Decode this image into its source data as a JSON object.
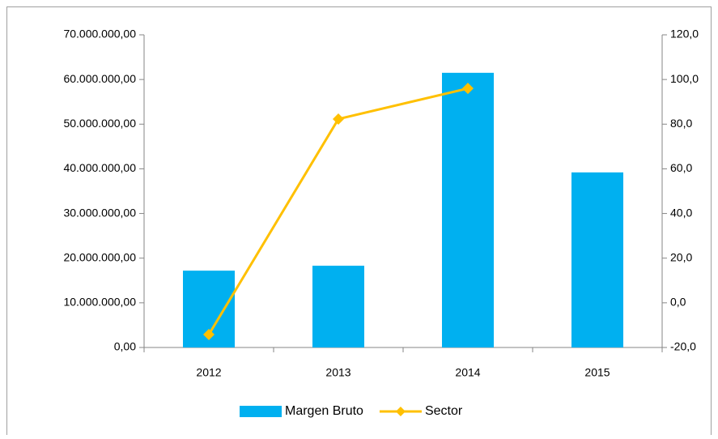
{
  "chart_data": {
    "type": "bar-line",
    "categories": [
      "2012",
      "2013",
      "2014",
      "2015"
    ],
    "series": [
      {
        "name": "Margen Bruto",
        "type": "bar",
        "color": "#00b0f0",
        "values": [
          17200000,
          18300000,
          61500000,
          39200000
        ]
      },
      {
        "name": "Sector",
        "type": "line",
        "axis": "y2",
        "color": "#ffc000",
        "values": [
          -14.2,
          82.3,
          96,
          null
        ]
      }
    ],
    "ylim": [
      0,
      70000000
    ],
    "yticks": [
      {
        "value": 0,
        "label": "0,00"
      },
      {
        "value": 10000000,
        "label": "10.000.000,00"
      },
      {
        "value": 20000000,
        "label": "20.000.000,00"
      },
      {
        "value": 30000000,
        "label": "30.000.000,00"
      },
      {
        "value": 40000000,
        "label": "40.000.000,00"
      },
      {
        "value": 50000000,
        "label": "50.000.000,00"
      },
      {
        "value": 60000000,
        "label": "60.000.000,00"
      },
      {
        "value": 70000000,
        "label": "70.000.000,00"
      }
    ],
    "y2lim": [
      -20,
      120
    ],
    "y2ticks": [
      {
        "value": -20,
        "label": "-20,0"
      },
      {
        "value": 0,
        "label": "0,0"
      },
      {
        "value": 20,
        "label": "20,0"
      },
      {
        "value": 40,
        "label": "40,0"
      },
      {
        "value": 60,
        "label": "60,0"
      },
      {
        "value": 80,
        "label": "80,0"
      },
      {
        "value": 100,
        "label": "100,0"
      },
      {
        "value": 120,
        "label": "120,0"
      }
    ],
    "grid": false,
    "legend": "bottom"
  }
}
